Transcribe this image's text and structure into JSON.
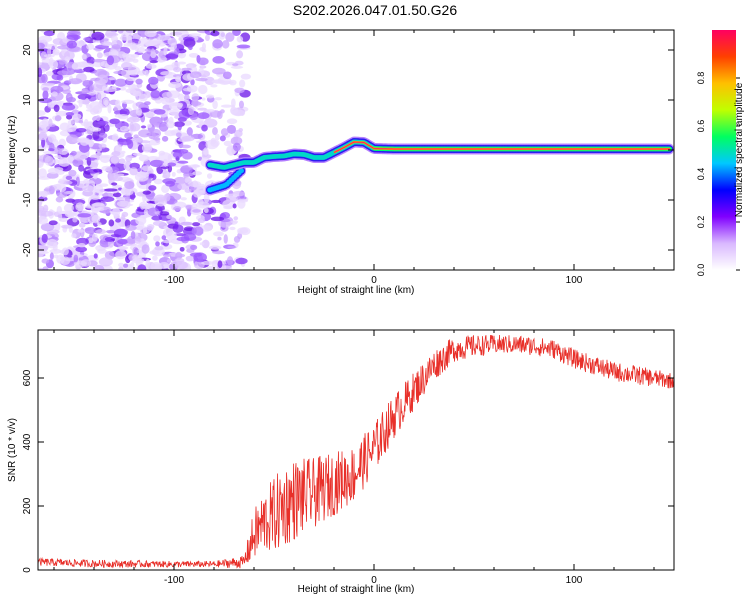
{
  "title": "S202.2026.047.01.50.G26",
  "chart_data": [
    {
      "type": "heatmap",
      "xlabel": "Height of straight line (km)",
      "ylabel": "Frequency (Hz)",
      "xlim": [
        -168,
        150
      ],
      "ylim": [
        -24,
        24
      ],
      "x_ticks": [
        -100,
        0,
        100
      ],
      "x_tick_labels": [
        "-100",
        "0",
        "100"
      ],
      "y_ticks": [
        -20,
        -10,
        0,
        10,
        20
      ],
      "y_tick_labels": [
        "-20",
        "-10",
        "0",
        "10",
        "20"
      ],
      "noise_region_x": [
        -168,
        -70
      ],
      "signal_trace": {
        "x": [
          -82,
          -75,
          -70,
          -65,
          -60,
          -55,
          -50,
          -45,
          -40,
          -35,
          -30,
          -25,
          -20,
          -15,
          -10,
          -5,
          0,
          10,
          50,
          100,
          148
        ],
        "y": [
          -3,
          -3.5,
          -3,
          -2.5,
          -2.5,
          -1.5,
          -1.3,
          -1.2,
          -0.8,
          -0.9,
          -1.5,
          -1.5,
          -0.5,
          0.5,
          1.6,
          1.5,
          0.3,
          0.2,
          0.2,
          0.2,
          0.2
        ]
      },
      "branch_trace": {
        "x": [
          -82,
          -78,
          -74,
          -70,
          -66
        ],
        "y": [
          -8,
          -7.5,
          -7,
          -5.5,
          -4
        ]
      },
      "colorbar": {
        "label": "Normalized spectral amplitude",
        "range": [
          0,
          1
        ],
        "ticks": [
          0,
          0.2,
          0.4,
          0.6,
          0.8
        ],
        "tick_labels": [
          "0.0",
          "0.2",
          "0.4",
          "0.6",
          "0.8"
        ],
        "colors": [
          "#ffffff",
          "#d9b8ff",
          "#8000ff",
          "#0000ff",
          "#00c8ff",
          "#00ff60",
          "#c0ff00",
          "#ffc000",
          "#ff4000",
          "#ff0060"
        ]
      }
    },
    {
      "type": "line",
      "xlabel": "Height of straight line (km)",
      "ylabel": "SNR (10 * v/v)",
      "xlim": [
        -168,
        150
      ],
      "ylim": [
        0,
        750
      ],
      "x_ticks": [
        -100,
        0,
        100
      ],
      "x_tick_labels": [
        "-100",
        "0",
        "100"
      ],
      "y_ticks": [
        0,
        200,
        400,
        600
      ],
      "y_tick_labels": [
        "0",
        "200",
        "400",
        "600"
      ],
      "series": [
        {
          "name": "SNR",
          "color": "#e8302a",
          "envelope_x": [
            -168,
            -140,
            -100,
            -80,
            -65,
            -60,
            -55,
            -50,
            -45,
            -40,
            -35,
            -30,
            -20,
            -10,
            0,
            10,
            20,
            30,
            40,
            50,
            60,
            70,
            80,
            90,
            100,
            110,
            120,
            130,
            140,
            150
          ],
          "envelope_mean": [
            25,
            20,
            18,
            18,
            25,
            110,
            150,
            170,
            200,
            220,
            230,
            240,
            270,
            300,
            380,
            480,
            560,
            640,
            690,
            700,
            705,
            705,
            700,
            690,
            660,
            640,
            620,
            610,
            600,
            590
          ],
          "envelope_spread": [
            12,
            12,
            10,
            10,
            20,
            80,
            100,
            120,
            130,
            130,
            120,
            110,
            100,
            90,
            80,
            70,
            60,
            50,
            40,
            35,
            30,
            30,
            30,
            30,
            30,
            30,
            30,
            30,
            28,
            25
          ]
        }
      ]
    }
  ]
}
